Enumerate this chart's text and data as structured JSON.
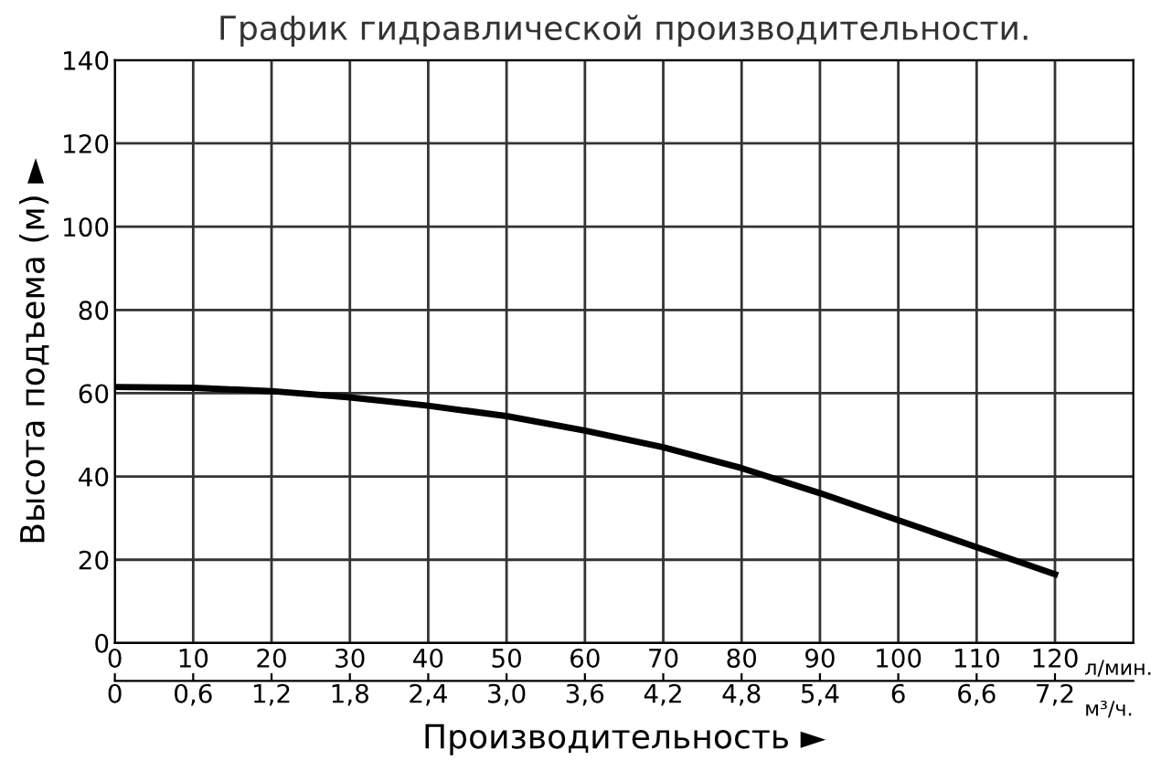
{
  "chart_data": {
    "type": "line",
    "title": "График гидравлической производительности.",
    "xlabel": "Производительность ►",
    "ylabel": "Высота подъема (м) ►",
    "x": [
      0,
      10,
      20,
      30,
      40,
      50,
      60,
      70,
      80,
      90,
      100,
      110,
      120
    ],
    "series": [
      {
        "color": "#000000",
        "values": [
          61.5,
          61.3,
          60.5,
          59,
          57,
          54.5,
          51,
          47,
          42,
          36,
          29.5,
          23,
          16.5
        ]
      }
    ],
    "xlim": [
      0,
      130
    ],
    "xticks": [
      0,
      10,
      20,
      30,
      40,
      50,
      60,
      70,
      80,
      90,
      100,
      110,
      120
    ],
    "x2lim": [
      0,
      7.8
    ],
    "x2ticks": [
      0,
      {
        "value": 0.6,
        "label": "0,6"
      },
      {
        "value": 1.2,
        "label": "1,2"
      },
      {
        "value": 1.8,
        "label": "1,8"
      },
      {
        "value": 2.4,
        "label": "2,4"
      },
      {
        "value": 3.0,
        "label": "3,0"
      },
      {
        "value": 3.6,
        "label": "3,6"
      },
      {
        "value": 4.2,
        "label": "4,2"
      },
      {
        "value": 4.8,
        "label": "4,8"
      },
      {
        "value": 5.4,
        "label": "5,4"
      },
      {
        "value": 6,
        "label": "6"
      },
      {
        "value": 6.6,
        "label": "6,6"
      },
      {
        "value": 7.2,
        "label": "7,2"
      }
    ],
    "ylim": [
      0,
      140
    ],
    "yticks": [
      0,
      20,
      40,
      60,
      80,
      100,
      120,
      140
    ],
    "annotations": [
      "л/мин.",
      "м³/ч."
    ],
    "grid": true,
    "marker": "none",
    "line_style": "solid",
    "legend": false
  }
}
